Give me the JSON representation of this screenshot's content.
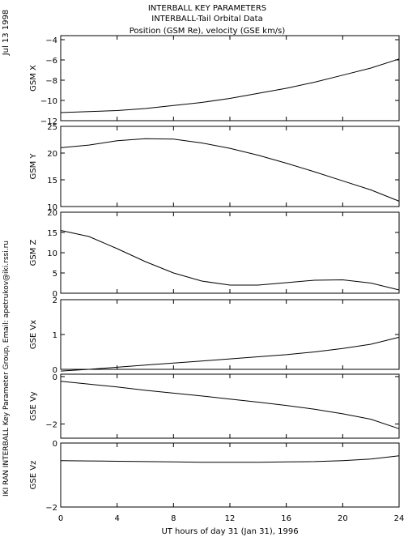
{
  "header": {
    "title": "INTERBALL KEY PARAMETERS",
    "subtitle": "INTERBALL-Tail Orbital Data",
    "units": "Position (GSM Re), velocity (GSE km/s)"
  },
  "side": {
    "date": "Jul 13 1998",
    "credit": "IKI RAN INTERBALL Key Parameter Group, Email: apetrukov@iki.rssi.ru"
  },
  "chart_data": {
    "type": "line",
    "xlabel": "UT hours of day  31 (Jan 31), 1996",
    "xlim": [
      0,
      24
    ],
    "xticks": [
      0,
      4,
      8,
      12,
      16,
      20,
      24
    ],
    "x": [
      0,
      2,
      4,
      6,
      8,
      10,
      12,
      14,
      16,
      18,
      20,
      22,
      24
    ],
    "panels": [
      {
        "ylabel": "GSM X",
        "ylim": [
          -12,
          -3.6
        ],
        "yticks": [
          -12,
          -10,
          -8,
          -6,
          -4
        ],
        "values": [
          -11.2,
          -11.1,
          -11.0,
          -10.8,
          -10.5,
          -10.2,
          -9.8,
          -9.3,
          -8.8,
          -8.2,
          -7.5,
          -6.8,
          -5.9
        ]
      },
      {
        "ylabel": "GSM Y",
        "ylim": [
          10,
          25
        ],
        "yticks": [
          10,
          15,
          20,
          25
        ],
        "values": [
          21.0,
          21.5,
          22.3,
          22.7,
          22.6,
          21.9,
          20.9,
          19.6,
          18.1,
          16.5,
          14.8,
          13.1,
          11.0
        ]
      },
      {
        "ylabel": "GSM Z",
        "ylim": [
          0,
          20
        ],
        "yticks": [
          0,
          5,
          10,
          15,
          20
        ],
        "values": [
          15.5,
          14.0,
          11.0,
          7.8,
          5.0,
          3.0,
          2.0,
          2.0,
          2.6,
          3.2,
          3.3,
          2.5,
          0.8
        ]
      },
      {
        "ylabel": "GSE Vx",
        "ylim": [
          0,
          2
        ],
        "yticks": [
          0,
          1,
          2
        ],
        "values": [
          -0.05,
          0.0,
          0.06,
          0.12,
          0.18,
          0.24,
          0.3,
          0.36,
          0.42,
          0.5,
          0.6,
          0.72,
          0.92
        ]
      },
      {
        "ylabel": "GSE Vy",
        "ylim": [
          -2.6,
          0.1
        ],
        "yticks": [
          -2,
          0
        ],
        "values": [
          -0.2,
          -0.32,
          -0.44,
          -0.58,
          -0.7,
          -0.82,
          -0.95,
          -1.08,
          -1.22,
          -1.38,
          -1.57,
          -1.8,
          -2.2
        ]
      },
      {
        "ylabel": "GSE Vz",
        "ylim": [
          -2.0,
          0.0
        ],
        "yticks": [
          -2,
          0
        ],
        "values": [
          -0.55,
          -0.56,
          -0.57,
          -0.58,
          -0.59,
          -0.6,
          -0.6,
          -0.6,
          -0.59,
          -0.58,
          -0.55,
          -0.5,
          -0.4
        ]
      }
    ]
  }
}
